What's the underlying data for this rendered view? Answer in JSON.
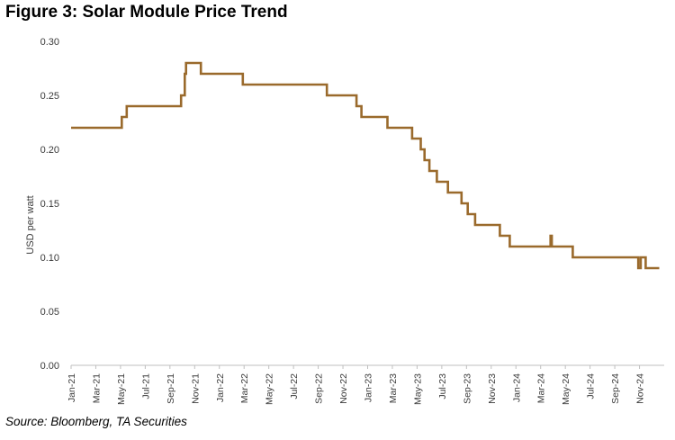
{
  "title": "Figure 3: Solar Module Price Trend",
  "source": "Source: Bloomberg, TA Securities",
  "chart_data": {
    "type": "line",
    "step": true,
    "title": "Figure 3: Solar Module Price Trend",
    "xlabel": "",
    "ylabel": "USD per watt",
    "ylim": [
      0,
      0.3
    ],
    "yticks": [
      0.0,
      0.05,
      0.1,
      0.15,
      0.2,
      0.25,
      0.3
    ],
    "ytick_labels": [
      "0.00",
      "0.05",
      "0.10",
      "0.15",
      "0.20",
      "0.25",
      "0.30"
    ],
    "xlim": [
      0,
      48
    ],
    "grid": false,
    "line_color": "#9a6a2c",
    "x_tick_positions": [
      0,
      2,
      4,
      6,
      8,
      10,
      12,
      14,
      16,
      18,
      20,
      22,
      24,
      26,
      28,
      30,
      32,
      34,
      36,
      38,
      40,
      42,
      44,
      46
    ],
    "x_tick_labels": [
      "Jan-21",
      "Mar-21",
      "May-21",
      "Jul-21",
      "Sep-21",
      "Nov-21",
      "Jan-22",
      "Mar-22",
      "May-22",
      "Jul-22",
      "Sep-22",
      "Nov-22",
      "Jan-23",
      "Mar-23",
      "May-23",
      "Jul-23",
      "Sep-23",
      "Nov-23",
      "Jan-24",
      "Mar-24",
      "May-24",
      "Jul-24",
      "Sep-24",
      "Nov-24"
    ],
    "series": [
      {
        "name": "Solar module price",
        "x": [
          0,
          4.1,
          4.5,
          6.2,
          8.9,
          9.2,
          9.3,
          10.5,
          11.7,
          13.9,
          20.7,
          23.1,
          23.5,
          24.5,
          25.6,
          27.6,
          28.3,
          28.4,
          28.6,
          29.0,
          29.6,
          30.5,
          31.6,
          32.1,
          32.7,
          33.7,
          34.7,
          35.5,
          38.8,
          38.9,
          40.6,
          45.9,
          46.1,
          46.3,
          46.5,
          47.6
        ],
        "y": [
          0.22,
          0.23,
          0.24,
          0.24,
          0.25,
          0.27,
          0.28,
          0.27,
          0.27,
          0.26,
          0.25,
          0.24,
          0.23,
          0.23,
          0.22,
          0.21,
          0.2,
          0.2,
          0.19,
          0.18,
          0.17,
          0.16,
          0.15,
          0.14,
          0.13,
          0.13,
          0.12,
          0.11,
          0.12,
          0.11,
          0.1,
          0.09,
          0.1,
          0.1,
          0.09,
          0.09
        ]
      }
    ]
  }
}
